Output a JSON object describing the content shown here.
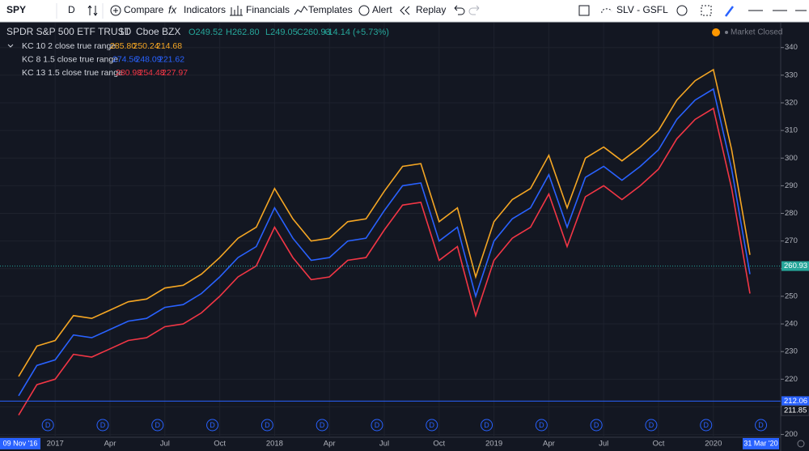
{
  "toolbar": {
    "symbol": "SPY",
    "interval": "D",
    "buttons": [
      "Compare",
      "Indicators",
      "Financials",
      "Templates",
      "Alert",
      "Replay"
    ],
    "layout": "SLV - GSFL"
  },
  "status": "Market Closed",
  "chart_data": {
    "type": "line",
    "title": "SPDR S&P 500 ETF TRUST",
    "interval": "1D",
    "exchange": "Cboe BZX",
    "ohlc": [
      "O249.52",
      "H262.80",
      "L249.05",
      "C260.93",
      "+14.14 (+5.73%)"
    ],
    "indicators": [
      {
        "label": "KC 10 2 close true range",
        "color": "#f5a623",
        "values": [
          "285.80",
          "250.24",
          "214.68"
        ]
      },
      {
        "label": "KC 8 1.5 close true range",
        "color": "#2962ff",
        "values": [
          "274.56",
          "248.09",
          "221.62"
        ]
      },
      {
        "label": "KC 13 1.5 close true range",
        "color": "#f23645",
        "values": [
          "280.98",
          "254.48",
          "227.97"
        ]
      }
    ],
    "categories": [
      null,
      null,
      "2017",
      null,
      null,
      "Apr",
      null,
      null,
      "Jul",
      null,
      null,
      "Oct",
      null,
      null,
      "2018",
      null,
      null,
      "Apr",
      null,
      null,
      "Jul",
      null,
      null,
      "Oct",
      null,
      null,
      "2019",
      null,
      null,
      "Apr",
      null,
      null,
      "Jul",
      null,
      null,
      "Oct",
      null,
      null,
      "2020",
      null,
      null
    ],
    "series": [
      {
        "color": "#f5a623",
        "values": [
          221,
          232,
          234,
          243,
          242,
          245,
          248,
          249,
          253,
          254,
          258,
          264,
          271,
          275,
          289,
          278,
          270,
          271,
          277,
          278,
          288,
          297,
          298,
          277,
          282,
          257,
          277,
          285,
          289,
          301,
          282,
          300,
          304,
          299,
          304,
          310,
          321,
          328,
          332,
          303,
          265
        ]
      },
      {
        "color": "#2962ff",
        "values": [
          214,
          225,
          227,
          236,
          235,
          238,
          241,
          242,
          246,
          247,
          251,
          257,
          264,
          268,
          282,
          271,
          263,
          264,
          270,
          271,
          281,
          290,
          291,
          270,
          275,
          250,
          270,
          278,
          282,
          294,
          275,
          293,
          297,
          292,
          297,
          303,
          314,
          321,
          325,
          296,
          258
        ]
      },
      {
        "color": "#f23645",
        "values": [
          207,
          218,
          220,
          229,
          228,
          231,
          234,
          235,
          239,
          240,
          244,
          250,
          257,
          261,
          275,
          264,
          256,
          257,
          263,
          264,
          274,
          283,
          284,
          263,
          268,
          243,
          263,
          271,
          275,
          287,
          268,
          286,
          290,
          285,
          290,
          296,
          307,
          314,
          318,
          289,
          251
        ]
      }
    ],
    "ylim": [
      199,
      349
    ],
    "yticks": [
      200,
      210,
      220,
      230,
      240,
      250,
      260,
      270,
      280,
      290,
      300,
      310,
      320,
      330,
      340
    ],
    "price_lines": [
      {
        "value": 260.93,
        "label": "260.93",
        "color": "#26a69a"
      },
      {
        "value": 212.06,
        "label": "212.06",
        "color": "#2962ff"
      },
      {
        "value": 211.85,
        "label": "211.85",
        "color": "#131722"
      }
    ],
    "dividends": [
      "D",
      "D",
      "D",
      "D",
      "D",
      "D",
      "D",
      "D",
      "D",
      "D",
      "D",
      "D",
      "D",
      "D"
    ],
    "range_labels": [
      "09 Nov '16",
      "31 Mar '20"
    ]
  }
}
